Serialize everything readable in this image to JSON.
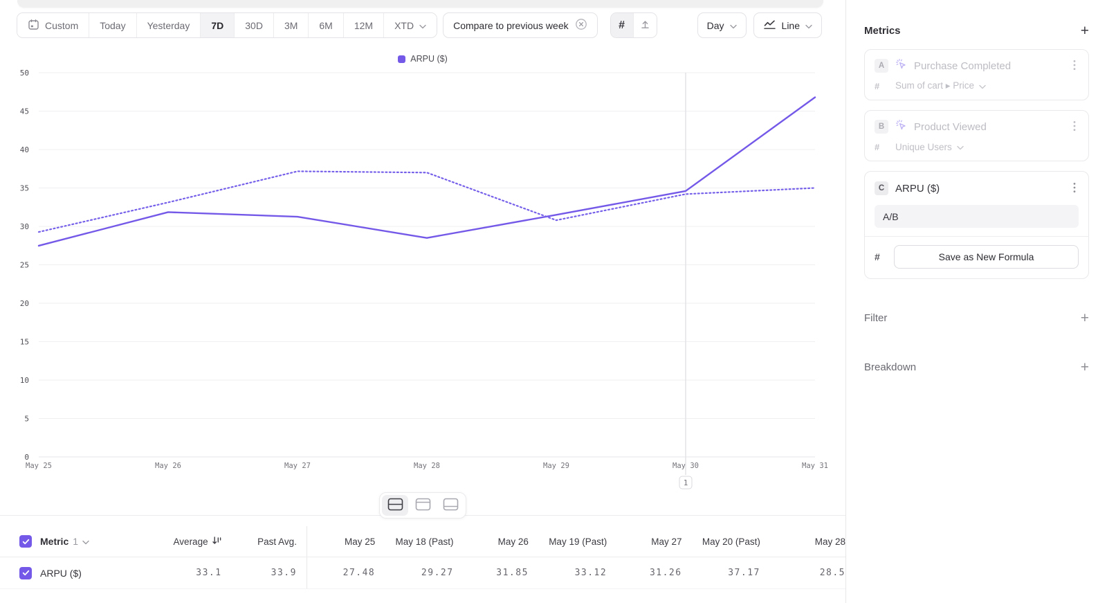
{
  "accent_color": "#7459E8",
  "toolbar": {
    "ranges": [
      "Custom",
      "Today",
      "Yesterday",
      "7D",
      "30D",
      "3M",
      "6M",
      "12M",
      "XTD"
    ],
    "selected_range": "7D",
    "compare_label": "Compare to previous week",
    "granularity": "Day",
    "chart_type": "Line"
  },
  "legend": {
    "label": "ARPU ($)"
  },
  "chart_data": {
    "type": "line",
    "title": "ARPU ($)",
    "x": [
      "May 25",
      "May 26",
      "May 27",
      "May 28",
      "May 29",
      "May 30",
      "May 31"
    ],
    "series": [
      {
        "name": "ARPU ($)",
        "style": "solid",
        "color": "#7459E8",
        "values": [
          27.48,
          31.85,
          31.26,
          28.5,
          31.5,
          34.6,
          46.8
        ]
      },
      {
        "name": "ARPU ($) previous week",
        "style": "dotted",
        "color": "#7560EA",
        "values": [
          29.27,
          33.12,
          37.17,
          37.0,
          30.8,
          34.2,
          35.0
        ]
      }
    ],
    "ylim": [
      0,
      50
    ],
    "ytick_step": 5,
    "grid": true,
    "legend_position": "top-center",
    "annotation": {
      "x": "May 30",
      "label": "1"
    }
  },
  "table": {
    "metric_label": "Metric",
    "metric_count": "1",
    "columns": [
      "Average",
      "Past Avg.",
      "May 25",
      "May 18 (Past)",
      "May 26",
      "May 19 (Past)",
      "May 27",
      "May 20 (Past)",
      "May 28"
    ],
    "rows": [
      {
        "name": "ARPU ($)",
        "checked": true,
        "values": [
          "33.1",
          "33.9",
          "27.48",
          "29.27",
          "31.85",
          "33.12",
          "31.26",
          "37.17",
          "28.5"
        ]
      }
    ]
  },
  "sidebar": {
    "metrics_title": "Metrics",
    "metrics": [
      {
        "badge": "A",
        "name": "Purchase Completed",
        "aggregation_prefix": "#",
        "aggregation": "Sum of cart ▸ Price",
        "state": "dimmed"
      },
      {
        "badge": "B",
        "name": "Product Viewed",
        "aggregation_prefix": "#",
        "aggregation": "Unique Users",
        "state": "dimmed"
      },
      {
        "badge": "C",
        "name": "ARPU ($)",
        "formula_prefix": "#",
        "formula": "A/B",
        "action_label": "Save as New Formula",
        "state": "active"
      }
    ],
    "filter_label": "Filter",
    "breakdown_label": "Breakdown"
  },
  "icons": {
    "toolbar": [
      "calendar-icon",
      "chevron-down-icon",
      "circle-x-icon",
      "hash-grid-icon",
      "annotation-marker-icon",
      "line-chart-icon"
    ],
    "layout_toggles": [
      "split-view-icon",
      "chart-view-icon",
      "table-view-icon"
    ],
    "table": [
      "checkbox-checked-icon",
      "sort-descending-icon",
      "chevron-down-icon"
    ],
    "sidebar": [
      "plus-icon",
      "event-spark-icon",
      "kebab-menu-icon",
      "hash-icon"
    ]
  }
}
